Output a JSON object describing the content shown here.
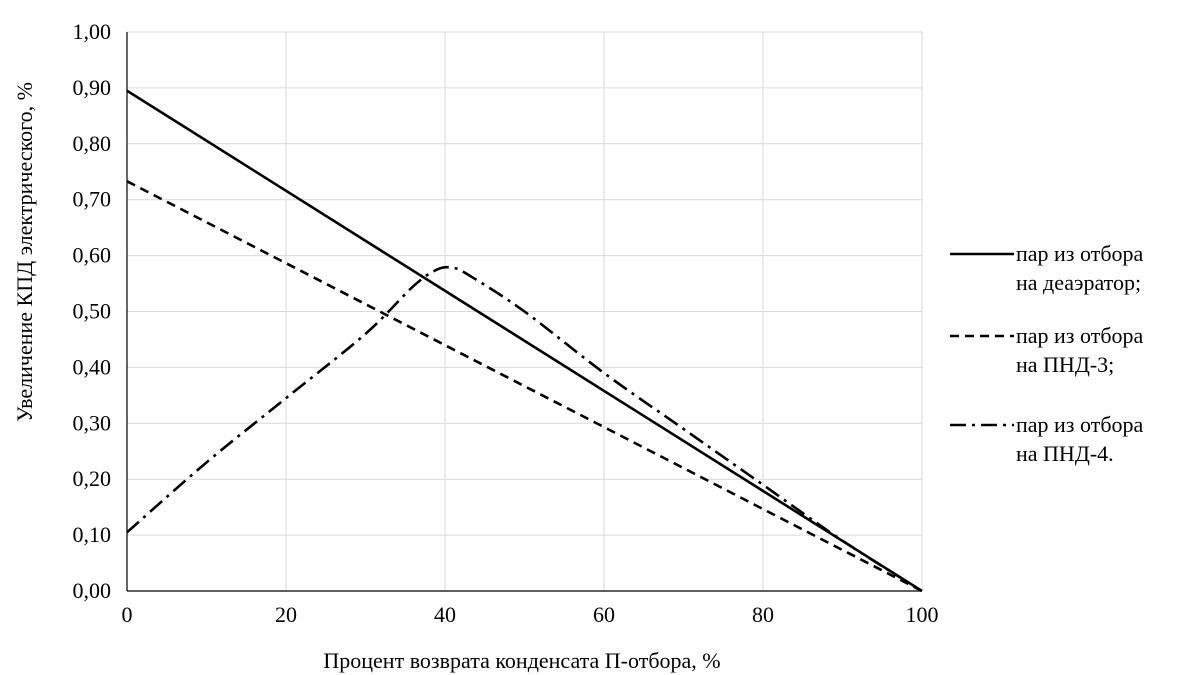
{
  "chart_data": {
    "type": "line",
    "title": "",
    "xlabel": "Процент возврата конденсата П-отбора, %",
    "ylabel": "Увеличение КПД электрического, %",
    "xlim": [
      0,
      100
    ],
    "ylim": [
      0,
      1.0
    ],
    "x_ticks": [
      0,
      20,
      40,
      60,
      80,
      100
    ],
    "x_tick_labels": [
      "0",
      "20",
      "40",
      "60",
      "80",
      "100"
    ],
    "y_ticks": [
      0,
      0.1,
      0.2,
      0.3,
      0.4,
      0.5,
      0.6,
      0.7,
      0.8,
      0.9,
      1.0
    ],
    "y_tick_labels": [
      "0,00",
      "0,10",
      "0,20",
      "0,30",
      "0,40",
      "0,50",
      "0,60",
      "0,70",
      "0,80",
      "0,90",
      "1,00"
    ],
    "grid": true,
    "legend_position": "right",
    "series": [
      {
        "name_lines": [
          "пар из отбора",
          "на деаэратор;"
        ],
        "style": "solid",
        "color": "#000000",
        "points": [
          [
            0,
            0.895
          ],
          [
            100,
            0.0
          ]
        ]
      },
      {
        "name_lines": [
          "пар из отбора",
          "на ПНД-3;"
        ],
        "style": "dashed",
        "color": "#000000",
        "points": [
          [
            0,
            0.733
          ],
          [
            100,
            0.0
          ]
        ]
      },
      {
        "name_lines": [
          "пар из отбора",
          "на ПНД-4."
        ],
        "style": "dashdot",
        "color": "#000000",
        "points": [
          [
            0,
            0.105
          ],
          [
            10,
            0.23
          ],
          [
            20,
            0.345
          ],
          [
            30,
            0.46
          ],
          [
            36,
            0.545
          ],
          [
            39,
            0.575
          ],
          [
            41,
            0.578
          ],
          [
            43,
            0.565
          ],
          [
            50,
            0.5
          ],
          [
            60,
            0.39
          ],
          [
            70,
            0.29
          ],
          [
            80,
            0.19
          ],
          [
            90,
            0.09
          ],
          [
            100,
            0.0
          ]
        ]
      }
    ]
  }
}
